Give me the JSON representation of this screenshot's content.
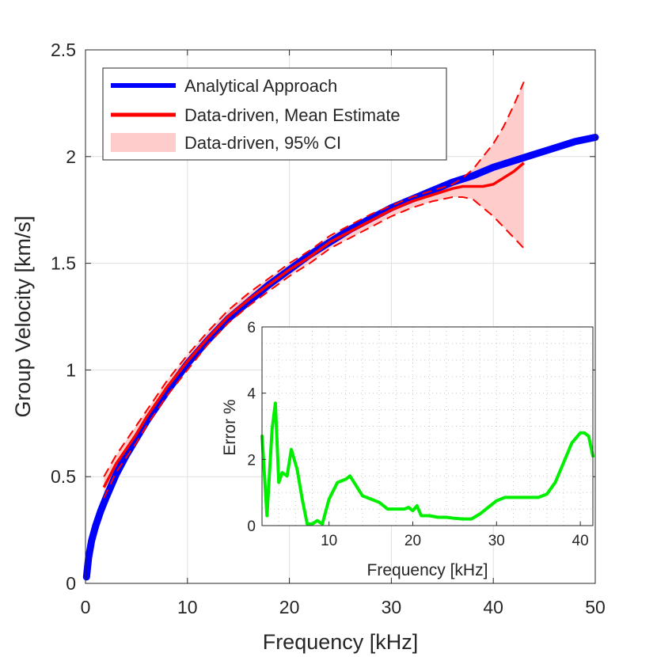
{
  "chart_data": [
    {
      "type": "line",
      "xlabel": "Frequency [kHz]",
      "ylabel": "Group Velocity [km/s]",
      "xlim": [
        0,
        50
      ],
      "ylim": [
        0,
        2.5
      ],
      "xticks": [
        "0",
        "10",
        "20",
        "30",
        "40",
        "50"
      ],
      "yticks": [
        "0",
        "0.5",
        "1",
        "1.5",
        "2",
        "2.5"
      ],
      "grid": true,
      "legend_position": "top-left",
      "series": [
        {
          "name": "Analytical Approach",
          "color": "#0000ff",
          "x": [
            0.1,
            0.3,
            0.6,
            1,
            1.5,
            2,
            3,
            4,
            5,
            6,
            7,
            8,
            10,
            12,
            14,
            16,
            18,
            20,
            22,
            24,
            26,
            28,
            30,
            32,
            34,
            36,
            38,
            40,
            42,
            44,
            46,
            48,
            50
          ],
          "y": [
            0.03,
            0.12,
            0.2,
            0.27,
            0.34,
            0.4,
            0.51,
            0.6,
            0.68,
            0.76,
            0.83,
            0.9,
            1.03,
            1.14,
            1.24,
            1.32,
            1.4,
            1.47,
            1.54,
            1.6,
            1.66,
            1.71,
            1.76,
            1.8,
            1.84,
            1.88,
            1.91,
            1.95,
            1.98,
            2.01,
            2.04,
            2.07,
            2.09
          ]
        },
        {
          "name": "Data-driven, Mean Estimate",
          "color": "#ff0000",
          "x": [
            1.8,
            3,
            4,
            5,
            6,
            7,
            8,
            10,
            12,
            14,
            16,
            18,
            20,
            22,
            24,
            26,
            28,
            30,
            32,
            34,
            36,
            37,
            38,
            39,
            40,
            41,
            42,
            43
          ],
          "y": [
            0.45,
            0.56,
            0.63,
            0.7,
            0.78,
            0.85,
            0.92,
            1.04,
            1.15,
            1.25,
            1.33,
            1.4,
            1.47,
            1.53,
            1.6,
            1.65,
            1.7,
            1.75,
            1.79,
            1.82,
            1.85,
            1.86,
            1.86,
            1.86,
            1.87,
            1.9,
            1.93,
            1.97
          ]
        },
        {
          "name": "Data-driven, 95% CI",
          "color": "#ffcccc",
          "edge_color": "#ff0000",
          "x": [
            1.8,
            3,
            4,
            5,
            6,
            7,
            8,
            10,
            12,
            14,
            16,
            18,
            20,
            22,
            24,
            26,
            28,
            30,
            32,
            34,
            36,
            37,
            38,
            39,
            40,
            41,
            42,
            43
          ],
          "upper": [
            0.5,
            0.6,
            0.67,
            0.74,
            0.81,
            0.88,
            0.95,
            1.07,
            1.18,
            1.28,
            1.36,
            1.43,
            1.5,
            1.56,
            1.63,
            1.68,
            1.73,
            1.77,
            1.81,
            1.84,
            1.87,
            1.9,
            1.94,
            2.0,
            2.06,
            2.14,
            2.24,
            2.35
          ],
          "lower": [
            0.4,
            0.52,
            0.59,
            0.66,
            0.74,
            0.81,
            0.88,
            1.0,
            1.12,
            1.22,
            1.3,
            1.37,
            1.44,
            1.5,
            1.57,
            1.62,
            1.67,
            1.72,
            1.76,
            1.79,
            1.81,
            1.81,
            1.8,
            1.76,
            1.72,
            1.67,
            1.62,
            1.57
          ]
        }
      ]
    },
    {
      "type": "line",
      "xlabel": "Frequency [kHz]",
      "ylabel": "Error %",
      "xlim": [
        2,
        41.5
      ],
      "ylim": [
        0,
        6
      ],
      "xticks": [
        "10",
        "20",
        "30",
        "40"
      ],
      "yticks": [
        "0",
        "2",
        "4",
        "6"
      ],
      "grid": "dotted",
      "series": [
        {
          "color": "#00ee00",
          "x": [
            2,
            2.6,
            3.2,
            3.6,
            4,
            4.4,
            5,
            5.5,
            6.2,
            6.8,
            7.4,
            8,
            8.6,
            9.2,
            10,
            11,
            12,
            12.5,
            13,
            14,
            15,
            16,
            17,
            18,
            19,
            19.5,
            20,
            20.5,
            21,
            22,
            23,
            24,
            25,
            26,
            27,
            28,
            29,
            30,
            31,
            32,
            33,
            34,
            35,
            36,
            37,
            38,
            39,
            40,
            40.5,
            41,
            41.5
          ],
          "y": [
            2.7,
            0.3,
            2.9,
            3.7,
            1.3,
            1.6,
            1.5,
            2.3,
            1.7,
            0.8,
            0.05,
            0.05,
            0.15,
            0.05,
            0.8,
            1.3,
            1.4,
            1.5,
            1.3,
            0.9,
            0.8,
            0.7,
            0.5,
            0.5,
            0.5,
            0.55,
            0.45,
            0.6,
            0.3,
            0.3,
            0.25,
            0.25,
            0.22,
            0.2,
            0.2,
            0.35,
            0.55,
            0.75,
            0.85,
            0.85,
            0.85,
            0.85,
            0.85,
            0.95,
            1.3,
            1.9,
            2.5,
            2.8,
            2.8,
            2.7,
            2.1
          ]
        }
      ]
    }
  ]
}
